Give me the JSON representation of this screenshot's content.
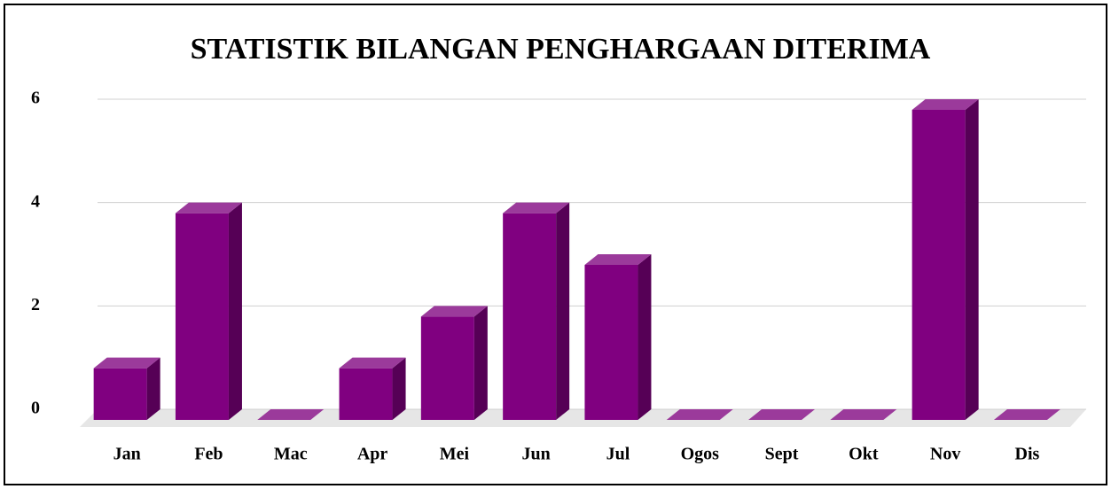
{
  "chart_data": {
    "type": "bar",
    "title": "STATISTIK BILANGAN PENGHARGAAN DITERIMA",
    "categories": [
      "Jan",
      "Feb",
      "Mac",
      "Apr",
      "Mei",
      "Jun",
      "Jul",
      "Ogos",
      "Sept",
      "Okt",
      "Nov",
      "Dis"
    ],
    "values": [
      1,
      4,
      0,
      1,
      2,
      4,
      3,
      0,
      0,
      0,
      6,
      0
    ],
    "color": "#800080",
    "ylim": [
      0,
      6
    ],
    "yticks": [
      0,
      2,
      4,
      6
    ],
    "grid": true
  }
}
